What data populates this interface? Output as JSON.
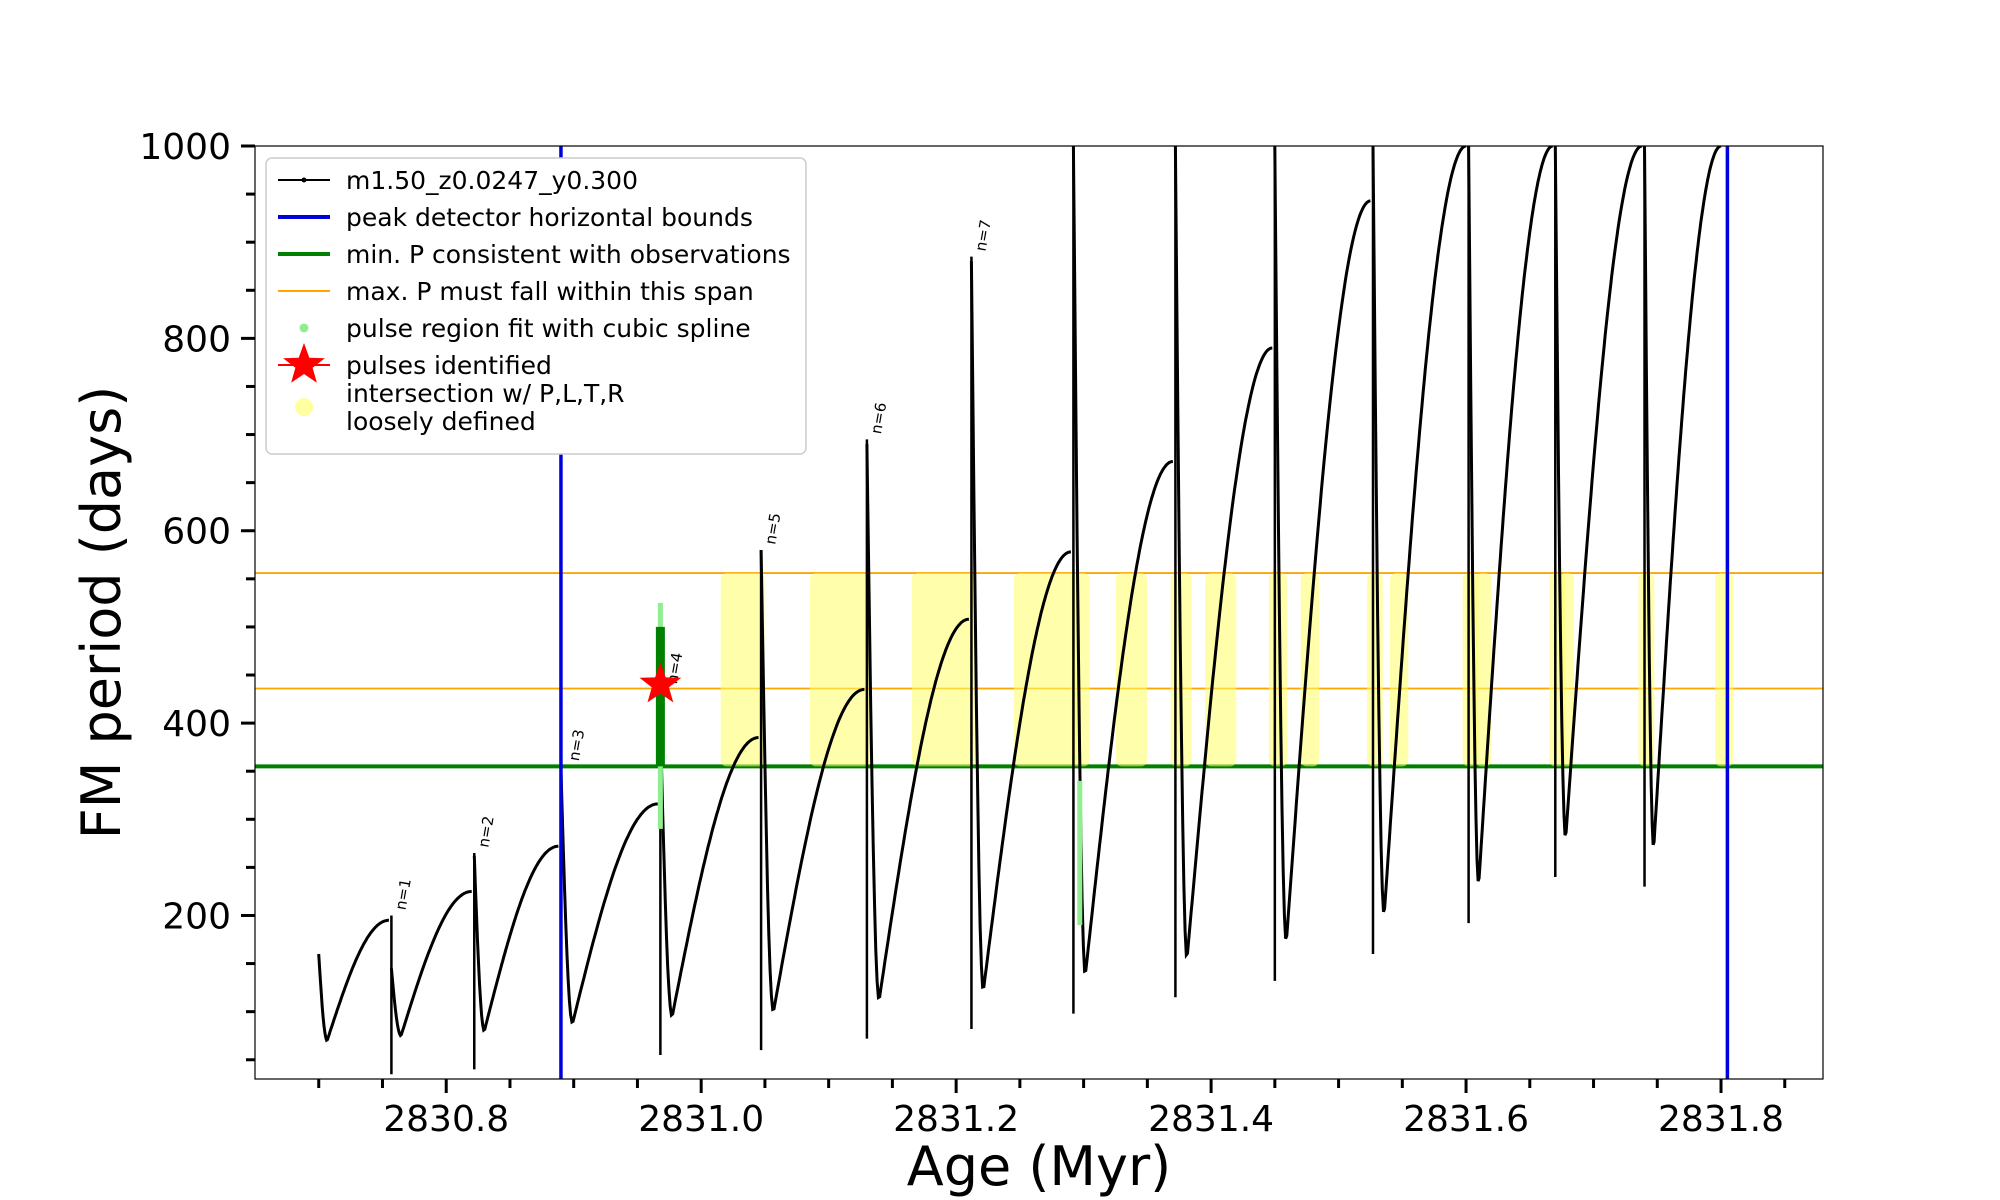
{
  "chart_data": {
    "type": "line",
    "xlabel": "Age (Myr)",
    "ylabel": "FM period (days)",
    "xlim": [
      2830.65,
      2831.88
    ],
    "ylim": [
      30,
      1000
    ],
    "xticks": [
      2830.8,
      2831.0,
      2831.2,
      2831.4,
      2831.6,
      2831.8
    ],
    "yticks": [
      200,
      400,
      600,
      800,
      1000
    ],
    "grid": false,
    "legend_position": "top-left",
    "legend": [
      {
        "label": "m1.50_z0.0247_y0.300",
        "kind": "line-marker",
        "color": "#000000"
      },
      {
        "label": "peak detector horizontal bounds",
        "kind": "line",
        "color": "#0000dd"
      },
      {
        "label": "min. P consistent with observations",
        "kind": "line",
        "color": "#008000"
      },
      {
        "label": "max. P must fall within this span",
        "kind": "thin-line",
        "color": "#ffa500"
      },
      {
        "label": "pulse region fit with cubic spline",
        "kind": "dot",
        "color": "#90ee90"
      },
      {
        "label": "pulses identified",
        "kind": "star",
        "color": "#ff0000"
      },
      {
        "label": "intersection w/ P,L,T,R\nloosely defined",
        "kind": "bigdot",
        "color": "#ffffa0"
      }
    ],
    "vlines": [
      {
        "x": 2830.89,
        "color": "#0000dd"
      },
      {
        "x": 2831.805,
        "color": "#0000dd"
      }
    ],
    "hlines": [
      {
        "y": 355,
        "color": "#008000"
      },
      {
        "y": 436,
        "color": "#ffa500"
      },
      {
        "y": 556,
        "color": "#ffa500"
      }
    ],
    "series": [
      {
        "name": "m1.50_z0.0247_y0.300",
        "color": "#000000",
        "cycles": [
          {
            "start": 2830.7,
            "end": 2830.755,
            "p_start": 160,
            "p_min": 70,
            "p_end": 195,
            "spike": 0
          },
          {
            "start": 2830.757,
            "end": 2830.82,
            "p_start": 145,
            "p_min": 75,
            "p_end": 225,
            "spike": 200
          },
          {
            "start": 2830.822,
            "end": 2830.888,
            "p_start": 262,
            "p_min": 80,
            "p_end": 272,
            "spike": 265
          },
          {
            "start": 2830.89,
            "end": 2830.966,
            "p_start": 350,
            "p_min": 88,
            "p_end": 316,
            "spike": 355
          },
          {
            "start": 2830.968,
            "end": 2831.045,
            "p_start": 400,
            "p_min": 95,
            "p_end": 385,
            "spike": 520
          },
          {
            "start": 2831.047,
            "end": 2831.128,
            "p_start": 580,
            "p_min": 100,
            "p_end": 435,
            "spike": 580
          },
          {
            "start": 2831.13,
            "end": 2831.21,
            "p_start": 690,
            "p_min": 112,
            "p_end": 508,
            "spike": 695
          },
          {
            "start": 2831.212,
            "end": 2831.29,
            "p_start": 880,
            "p_min": 122,
            "p_end": 578,
            "spike": 885
          },
          {
            "start": 2831.292,
            "end": 2831.37,
            "p_start": 1000,
            "p_min": 138,
            "p_end": 672,
            "spike": 1000
          },
          {
            "start": 2831.372,
            "end": 2831.448,
            "p_start": 1000,
            "p_min": 155,
            "p_end": 790,
            "spike": 1000
          },
          {
            "start": 2831.45,
            "end": 2831.525,
            "p_start": 1000,
            "p_min": 172,
            "p_end": 943,
            "spike": 1000
          },
          {
            "start": 2831.527,
            "end": 2831.6,
            "p_start": 1000,
            "p_min": 200,
            "p_end": 1000,
            "spike": 1000
          },
          {
            "start": 2831.602,
            "end": 2831.668,
            "p_start": 1000,
            "p_min": 232,
            "p_end": 1000,
            "spike": 1000
          },
          {
            "start": 2831.67,
            "end": 2831.738,
            "p_start": 1000,
            "p_min": 280,
            "p_end": 1000,
            "spike": 1000
          },
          {
            "start": 2831.74,
            "end": 2831.8,
            "p_start": 1000,
            "p_min": 270,
            "p_end": 1000,
            "spike": 1000
          }
        ]
      }
    ],
    "pulse_labels": [
      {
        "x": 2830.757,
        "y": 205,
        "text": "n=1"
      },
      {
        "x": 2830.822,
        "y": 270,
        "text": "n=2"
      },
      {
        "x": 2830.893,
        "y": 360,
        "text": "n=3"
      },
      {
        "x": 2830.97,
        "y": 440,
        "text": "n=4"
      },
      {
        "x": 2831.047,
        "y": 585,
        "text": "n=5"
      },
      {
        "x": 2831.13,
        "y": 700,
        "text": "n=6"
      },
      {
        "x": 2831.212,
        "y": 890,
        "text": "n=7"
      }
    ],
    "pulses_identified": [
      {
        "x": 2830.968,
        "y": 440
      }
    ],
    "pulse_region_spline": [
      {
        "x": 2830.968,
        "y_min": 190,
        "y_max": 525,
        "x2": 2831.297
      }
    ],
    "min_p_consistent_segment": {
      "x": 2830.968,
      "y_min": 355,
      "y_max": 500
    },
    "intersection_regions": [
      [
        2831.02,
        2831.045
      ],
      [
        2831.09,
        2831.128
      ],
      [
        2831.17,
        2831.21
      ],
      [
        2831.25,
        2831.29
      ],
      [
        2831.295,
        2831.3
      ],
      [
        2831.33,
        2831.345
      ],
      [
        2831.373,
        2831.38
      ],
      [
        2831.4,
        2831.415
      ],
      [
        2831.45,
        2831.455
      ],
      [
        2831.475,
        2831.48
      ],
      [
        2831.527,
        2831.53
      ],
      [
        2831.545,
        2831.55
      ],
      [
        2831.602,
        2831.605
      ],
      [
        2831.612,
        2831.615
      ],
      [
        2831.67,
        2831.673
      ],
      [
        2831.678,
        2831.68
      ],
      [
        2831.74,
        2831.743
      ],
      [
        2831.8,
        2831.805
      ]
    ]
  }
}
